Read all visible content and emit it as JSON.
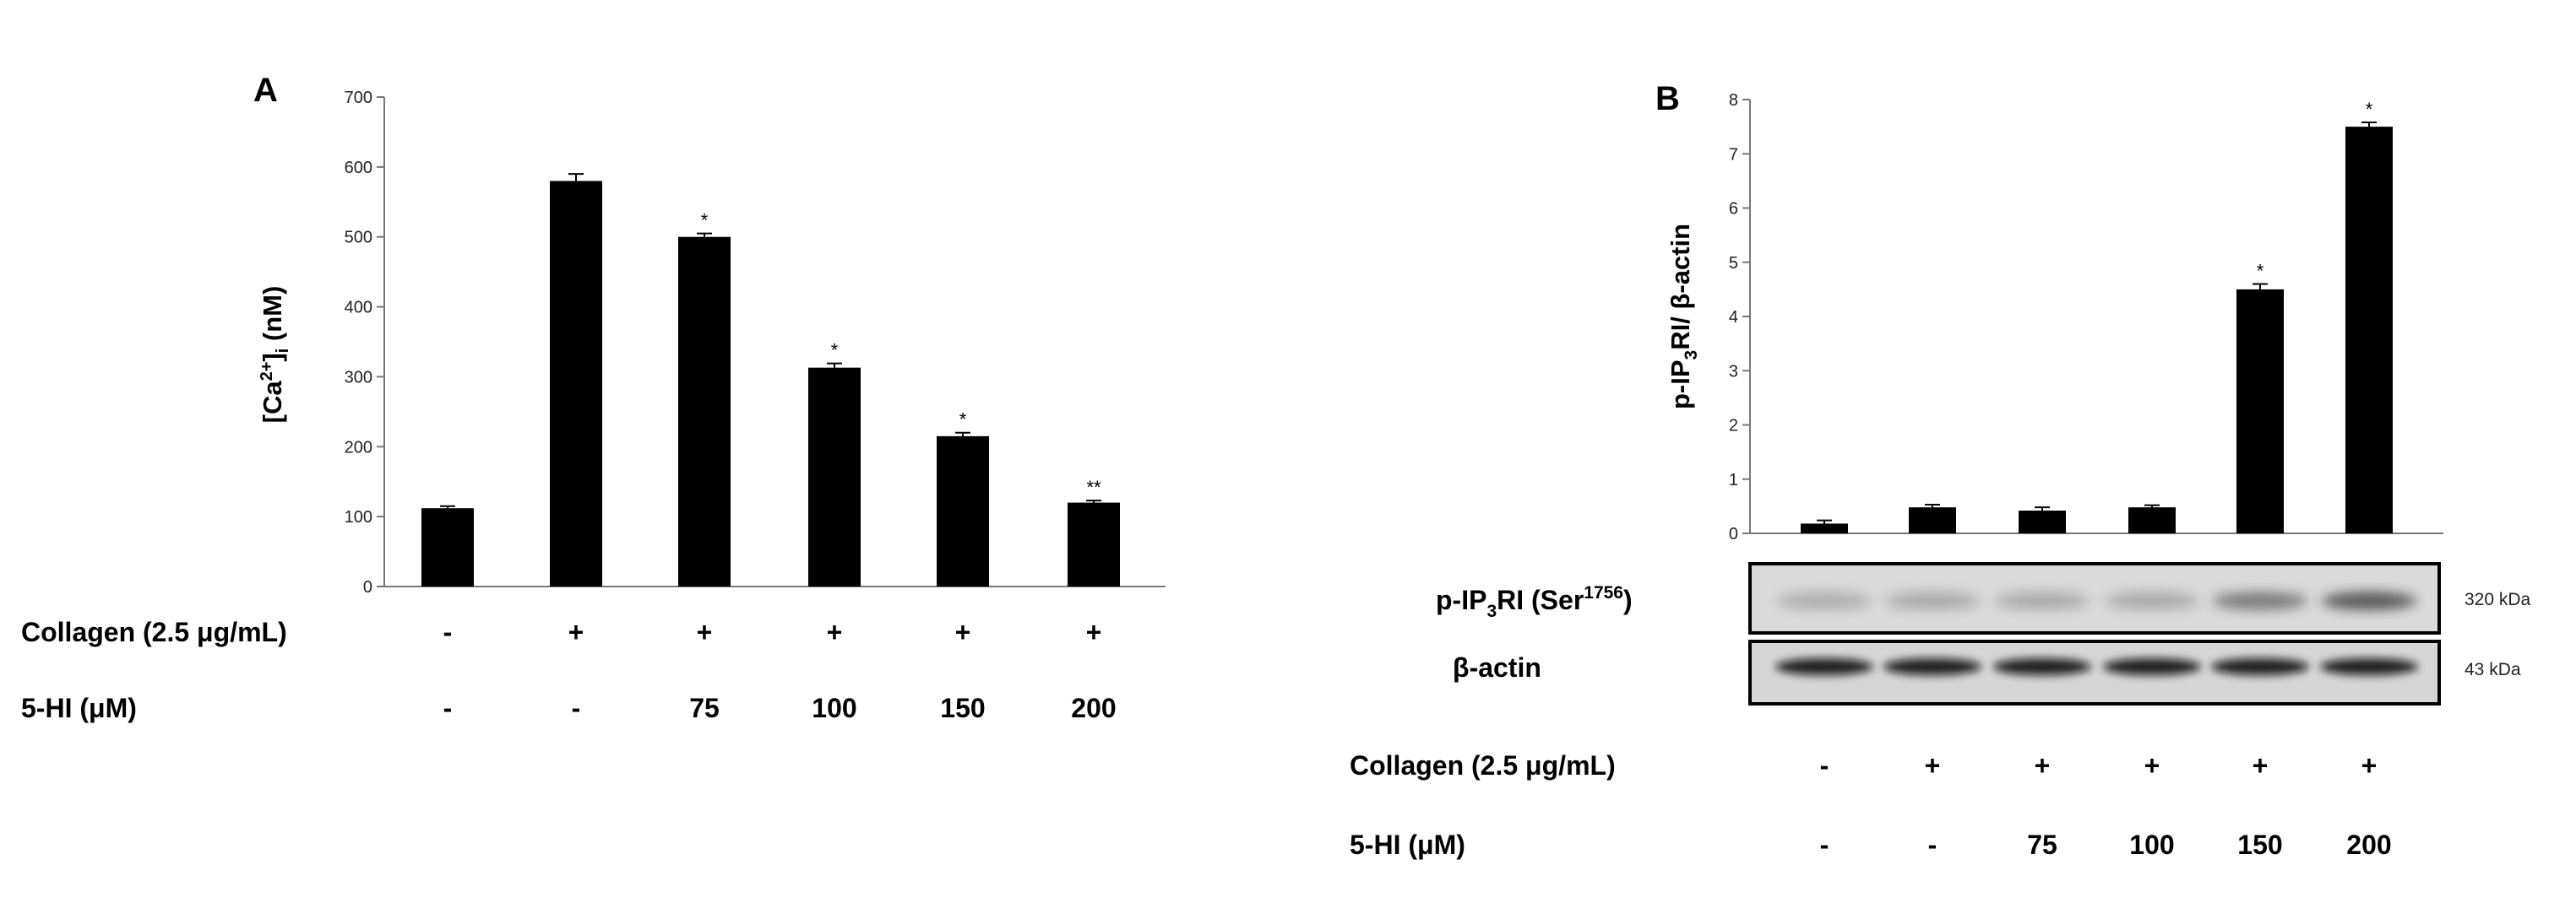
{
  "chart_data": [
    {
      "type": "bar",
      "panel_label": "A",
      "ylabel_parts": [
        "[Ca",
        "2+",
        "]",
        "i",
        " (nM)"
      ],
      "ylim": [
        0,
        700
      ],
      "yticks": [
        "0",
        "100",
        "200",
        "300",
        "400",
        "500",
        "600",
        "700"
      ],
      "values": [
        112,
        580,
        500,
        313,
        215,
        120
      ],
      "errors": [
        3,
        10,
        5,
        6,
        5,
        3
      ],
      "annotations": [
        "",
        "",
        "*",
        "*",
        "*",
        "**"
      ],
      "treatments": [
        {
          "label": "Collagen (2.5 μg/mL)",
          "values": [
            "-",
            "+",
            "+",
            "+",
            "+",
            "+"
          ]
        },
        {
          "label": "5-HI (μM)",
          "values": [
            "-",
            "-",
            "75",
            "100",
            "150",
            "200"
          ]
        }
      ]
    },
    {
      "type": "bar",
      "panel_label": "B",
      "ylabel_parts": [
        "p-IP",
        "3",
        "RI/ β-actin"
      ],
      "ylim": [
        0,
        8
      ],
      "yticks": [
        "0",
        "1",
        "2",
        "3",
        "4",
        "5",
        "6",
        "7",
        "8"
      ],
      "values": [
        0.18,
        0.48,
        0.42,
        0.48,
        4.5,
        7.5
      ],
      "errors": [
        0.06,
        0.05,
        0.06,
        0.04,
        0.1,
        0.08
      ],
      "annotations": [
        "",
        "",
        "",
        "",
        "*",
        "*"
      ],
      "blots": [
        {
          "label_parts": [
            "p-IP",
            "3",
            "RI (Ser",
            "1756",
            ")"
          ],
          "kda": "320 kDa"
        },
        {
          "label_parts": [
            "β-actin"
          ],
          "kda": "43 kDa"
        }
      ],
      "treatments": [
        {
          "label": "Collagen (2.5 μg/mL)",
          "values": [
            "-",
            "+",
            "+",
            "+",
            "+",
            "+"
          ]
        },
        {
          "label": "5-HI (μM)",
          "values": [
            "-",
            "-",
            "75",
            "100",
            "150",
            "200"
          ]
        }
      ]
    }
  ]
}
